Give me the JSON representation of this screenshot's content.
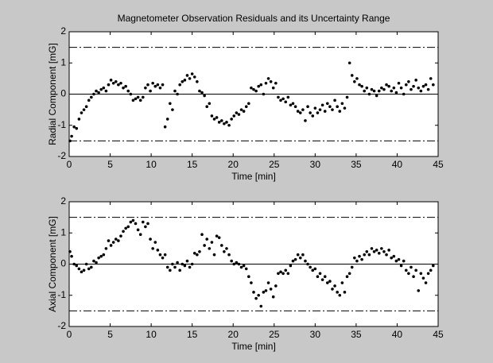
{
  "chart_data": [
    {
      "type": "scatter",
      "title": "Magnetometer Observation Residuals and its Uncertainty Range",
      "x_label": "Time [min]",
      "y_label": "Radial Component [mG]",
      "color": "#000000",
      "x": [
        0.1,
        0.3,
        0.6,
        0.9,
        1.2,
        1.5,
        1.8,
        2.1,
        2.4,
        2.7,
        3,
        3.3,
        3.6,
        3.9,
        4.2,
        4.5,
        4.8,
        5.1,
        5.4,
        5.7,
        6,
        6.3,
        6.6,
        6.9,
        7.2,
        7.5,
        7.8,
        8.1,
        8.4,
        8.7,
        9,
        9.3,
        9.6,
        9.9,
        10.2,
        10.5,
        10.8,
        11.1,
        11.4,
        11.7,
        12,
        12.3,
        12.6,
        12.9,
        13.2,
        13.5,
        13.8,
        14.1,
        14.4,
        14.7,
        15,
        15.3,
        15.6,
        15.9,
        16.2,
        16.5,
        16.8,
        17.1,
        17.4,
        17.7,
        18,
        18.3,
        18.6,
        18.9,
        19.2,
        19.5,
        19.8,
        20.1,
        20.4,
        20.7,
        21,
        21.3,
        21.6,
        21.9,
        22.2,
        22.5,
        22.8,
        23.1,
        23.4,
        23.7,
        24,
        24.3,
        24.6,
        24.9,
        25.2,
        25.5,
        25.8,
        26.1,
        26.4,
        26.7,
        27,
        27.3,
        27.6,
        27.9,
        28.2,
        28.5,
        28.8,
        29.1,
        29.4,
        29.7,
        30,
        30.3,
        30.6,
        30.9,
        31.2,
        31.5,
        31.8,
        32.1,
        32.4,
        32.7,
        33,
        33.3,
        33.6,
        33.9,
        34.2,
        34.5,
        34.8,
        35.1,
        35.4,
        35.7,
        36,
        36.3,
        36.6,
        36.9,
        37.2,
        37.5,
        37.8,
        38.1,
        38.4,
        38.7,
        39,
        39.3,
        39.6,
        39.9,
        40.2,
        40.5,
        40.8,
        41.1,
        41.4,
        41.7,
        42,
        42.3,
        42.6,
        42.9,
        43.2,
        43.5,
        43.8,
        44.1,
        44.4
      ],
      "values": [
        -1.5,
        -1.35,
        -1.05,
        -1.1,
        -0.8,
        -0.6,
        -0.5,
        -0.4,
        -0.2,
        -0.1,
        0,
        0.1,
        0.05,
        0.15,
        0.2,
        0.1,
        0.3,
        0.45,
        0.35,
        0.4,
        0.3,
        0.35,
        0.2,
        0.25,
        0.1,
        0,
        -0.2,
        -0.15,
        -0.1,
        -0.2,
        -0.1,
        0.2,
        0.3,
        0.1,
        0.35,
        0.25,
        0.3,
        0.2,
        0.3,
        -1.05,
        -0.8,
        -0.3,
        -0.5,
        0.1,
        0,
        0.3,
        0.4,
        0.45,
        0.6,
        0.5,
        0.65,
        0.55,
        0.4,
        0.1,
        0.05,
        -0.05,
        -0.4,
        -0.3,
        -0.7,
        -0.8,
        -0.75,
        -0.9,
        -0.85,
        -0.95,
        -0.9,
        -1,
        -0.8,
        -0.7,
        -0.6,
        -0.65,
        -0.5,
        -0.55,
        -0.4,
        -0.3,
        0.2,
        0.15,
        0.1,
        0.25,
        0.3,
        0,
        0.35,
        0.5,
        0.4,
        0.2,
        0.35,
        -0.1,
        -0.2,
        -0.15,
        -0.25,
        -0.1,
        -0.35,
        -0.3,
        -0.4,
        -0.55,
        -0.6,
        -0.5,
        -0.85,
        -0.4,
        -0.6,
        -0.7,
        -0.45,
        -0.6,
        -0.5,
        -0.35,
        -0.55,
        -0.3,
        -0.4,
        -0.5,
        -0.2,
        -0.4,
        -0.55,
        -0.3,
        -0.45,
        -0.1,
        1,
        0.6,
        0.4,
        0.5,
        0.3,
        0.25,
        0.1,
        0.2,
        0,
        0.15,
        0.1,
        -0.05,
        0.1,
        0.2,
        0.15,
        0.3,
        0.25,
        0.1,
        0.2,
        0.05,
        0.35,
        0.2,
        0,
        0.3,
        0.4,
        0.15,
        0.25,
        0.45,
        0.2,
        0.1,
        0.25,
        0.3,
        0.15,
        0.5,
        0.3
      ],
      "hlines": [
        {
          "value": 1.5,
          "style": "dashdot"
        },
        {
          "value": 0,
          "style": "solid"
        },
        {
          "value": -1.5,
          "style": "dashdot"
        }
      ],
      "xlim": [
        0,
        45
      ],
      "ylim": [
        -2,
        2
      ],
      "xticks": [
        0,
        5,
        10,
        15,
        20,
        25,
        30,
        35,
        40,
        45
      ],
      "yticks": [
        -2,
        -1,
        0,
        1,
        2
      ],
      "grid": false
    },
    {
      "type": "scatter",
      "x_label": "Time [min]",
      "y_label": "Axial Component [mG]",
      "color": "#000000",
      "x": [
        0.1,
        0.3,
        0.6,
        0.9,
        1.2,
        1.5,
        1.8,
        2.1,
        2.4,
        2.7,
        3,
        3.3,
        3.6,
        3.9,
        4.2,
        4.5,
        4.8,
        5.1,
        5.4,
        5.7,
        6,
        6.3,
        6.6,
        6.9,
        7.2,
        7.5,
        7.8,
        8.1,
        8.4,
        8.7,
        9,
        9.3,
        9.6,
        9.9,
        10.2,
        10.5,
        10.8,
        11.1,
        11.4,
        11.7,
        12,
        12.3,
        12.6,
        12.9,
        13.2,
        13.5,
        13.8,
        14.1,
        14.4,
        14.7,
        15,
        15.3,
        15.6,
        15.9,
        16.2,
        16.5,
        16.8,
        17.1,
        17.4,
        17.7,
        18,
        18.3,
        18.6,
        18.9,
        19.2,
        19.5,
        19.8,
        20.1,
        20.4,
        20.7,
        21,
        21.3,
        21.6,
        21.9,
        22.2,
        22.5,
        22.8,
        23.1,
        23.4,
        23.7,
        24,
        24.3,
        24.6,
        24.9,
        25.2,
        25.5,
        25.8,
        26.1,
        26.4,
        26.7,
        27,
        27.3,
        27.6,
        27.9,
        28.2,
        28.5,
        28.8,
        29.1,
        29.4,
        29.7,
        30,
        30.3,
        30.6,
        30.9,
        31.2,
        31.5,
        31.8,
        32.1,
        32.4,
        32.7,
        33,
        33.3,
        33.6,
        33.9,
        34.2,
        34.5,
        34.8,
        35.1,
        35.4,
        35.7,
        36,
        36.3,
        36.6,
        36.9,
        37.2,
        37.5,
        37.8,
        38.1,
        38.4,
        38.7,
        39,
        39.3,
        39.6,
        39.9,
        40.2,
        40.5,
        40.8,
        41.1,
        41.4,
        41.7,
        42,
        42.3,
        42.6,
        42.9,
        43.2,
        43.5,
        43.8,
        44.1,
        44.4
      ],
      "values": [
        0.4,
        0.25,
        0,
        -0.05,
        -0.15,
        -0.25,
        -0.2,
        0,
        -0.15,
        -0.1,
        0.1,
        0.05,
        0.2,
        0.25,
        0.3,
        0.5,
        0.75,
        0.6,
        0.7,
        0.8,
        0.75,
        0.9,
        1.05,
        1.15,
        1.2,
        1.35,
        1.4,
        1.3,
        1.1,
        0.95,
        1.35,
        1.2,
        1.3,
        0.8,
        0.5,
        0.7,
        0.45,
        0.3,
        0.2,
        0.3,
        -0.1,
        -0.2,
        0,
        -0.1,
        0.05,
        -0.2,
        0,
        -0.05,
        0.1,
        -0.1,
        0,
        0.35,
        0.3,
        0.4,
        0.95,
        0.6,
        0.8,
        0.5,
        0.7,
        0.3,
        0.9,
        0.85,
        0.6,
        0.4,
        0.5,
        0.3,
        0.1,
        0,
        0.05,
        0,
        -0.1,
        -0.05,
        -0.15,
        -0.4,
        -0.6,
        -0.9,
        -1.1,
        -1,
        -1.35,
        -0.9,
        -0.85,
        -0.6,
        -0.8,
        -1.05,
        -0.7,
        -0.3,
        -0.25,
        -0.3,
        -0.2,
        -0.3,
        -0.05,
        0.1,
        0.15,
        0.3,
        0.2,
        0.3,
        0.1,
        0,
        -0.1,
        -0.2,
        -0.15,
        -0.4,
        -0.3,
        -0.5,
        -0.4,
        -0.6,
        -0.55,
        -0.8,
        -0.7,
        -0.9,
        -1,
        -0.6,
        -0.9,
        -0.4,
        -0.3,
        -0.1,
        0.2,
        0.1,
        0.25,
        0.15,
        0.3,
        0.4,
        0.3,
        0.5,
        0.4,
        0.45,
        0.35,
        0.5,
        0.4,
        0.3,
        0.45,
        0.2,
        0.25,
        0.1,
        0.15,
        -0.05,
        0.1,
        -0.2,
        -0.3,
        -0.1,
        -0.4,
        -0.2,
        -0.85,
        -0.3,
        -0.45,
        -0.6,
        -0.3,
        -0.2,
        -0.05
      ],
      "hlines": [
        {
          "value": 1.5,
          "style": "dashdot"
        },
        {
          "value": 0,
          "style": "solid"
        },
        {
          "value": -1.5,
          "style": "dashdot"
        }
      ],
      "xlim": [
        0,
        45
      ],
      "ylim": [
        -2,
        2
      ],
      "xticks": [
        0,
        5,
        10,
        15,
        20,
        25,
        30,
        35,
        40,
        45
      ],
      "yticks": [
        -2,
        -1,
        0,
        1,
        2
      ],
      "grid": false
    }
  ]
}
